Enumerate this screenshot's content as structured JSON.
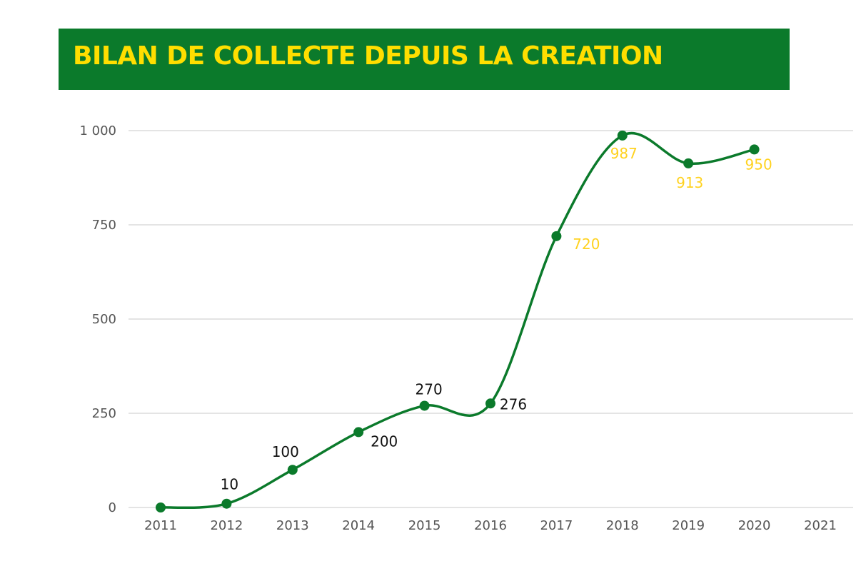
{
  "title": "BILAN DE COLLECTE DEPUIS LA CREATION",
  "colors": {
    "banner": "#0b7a2b",
    "title_text": "#ffde00",
    "line": "#0b7a2b",
    "label_dark": "#111111",
    "label_yellow": "#ffd21f",
    "grid": "#c8c8c8"
  },
  "chart_data": {
    "type": "line",
    "title": "BILAN DE COLLECTE DEPUIS LA CREATION",
    "xlabel": "",
    "ylabel": "",
    "categories": [
      "2011",
      "2012",
      "2013",
      "2014",
      "2015",
      "2016",
      "2017",
      "2018",
      "2019",
      "2020",
      "2021"
    ],
    "x": [
      2011,
      2012,
      2013,
      2014,
      2015,
      2016,
      2017,
      2018,
      2019,
      2020
    ],
    "values": [
      0,
      10,
      100,
      200,
      270,
      276,
      720,
      987,
      913,
      950
    ],
    "data_labels": [
      "",
      "10",
      "100",
      "200",
      "270",
      "276",
      "720",
      "987",
      "913",
      "950"
    ],
    "ylim": [
      0,
      1000
    ],
    "yticks": [
      0,
      250,
      500,
      750,
      1000
    ],
    "ytick_labels": [
      "0",
      "250",
      "500",
      "750",
      "1 000"
    ],
    "grid": true,
    "smooth": true
  }
}
